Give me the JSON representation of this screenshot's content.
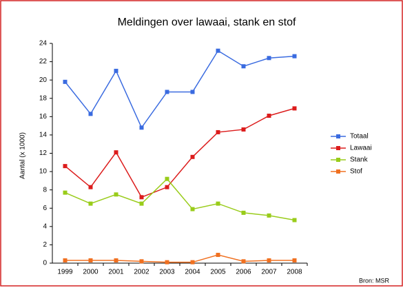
{
  "chart_data": {
    "type": "line",
    "title": "Meldingen over lawaai, stank en stof",
    "y_label": "Aantal (x 1000)",
    "source": "Bron: MSR",
    "categories": [
      "1999",
      "2000",
      "2001",
      "2002",
      "2003",
      "2004",
      "2005",
      "2006",
      "2007",
      "2008"
    ],
    "series": [
      {
        "name": "Totaal",
        "color": "#3a6be0",
        "values": [
          19.8,
          16.3,
          21.0,
          14.8,
          18.7,
          18.7,
          23.2,
          21.5,
          22.4,
          22.6
        ]
      },
      {
        "name": "Lawaai",
        "color": "#dc1c1c",
        "values": [
          10.6,
          8.3,
          12.1,
          7.2,
          8.3,
          11.6,
          14.3,
          14.6,
          16.1,
          16.9
        ]
      },
      {
        "name": "Stank",
        "color": "#99cc1a",
        "values": [
          7.7,
          6.5,
          7.5,
          6.5,
          9.2,
          5.9,
          6.5,
          5.5,
          5.2,
          4.7
        ]
      },
      {
        "name": "Stof",
        "color": "#f07020",
        "values": [
          0.3,
          0.3,
          0.3,
          0.2,
          0.1,
          0.1,
          0.9,
          0.2,
          0.3,
          0.3
        ]
      }
    ],
    "ylim": [
      0,
      24
    ],
    "yticks": [
      0,
      2,
      4,
      6,
      8,
      10,
      12,
      14,
      16,
      18,
      20,
      22,
      24
    ],
    "grid": false,
    "legend": "right"
  }
}
